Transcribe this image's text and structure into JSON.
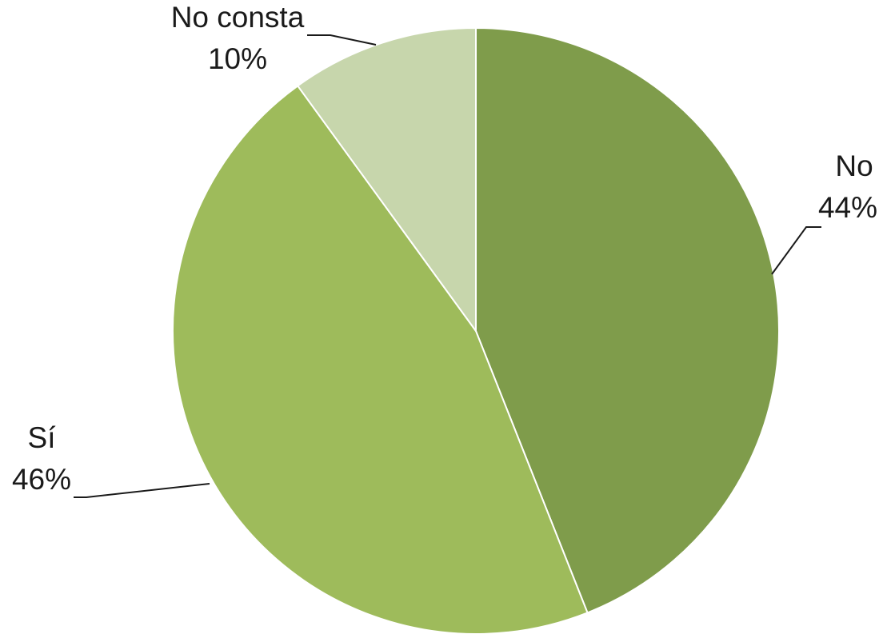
{
  "chart_data": {
    "type": "pie",
    "slices": [
      {
        "label": "No",
        "value": 44,
        "value_label": "44%",
        "color": "#7f9c4b"
      },
      {
        "label": "Sí",
        "value": 46,
        "value_label": "46%",
        "color": "#9ebb5b"
      },
      {
        "label": "No consta",
        "value": 10,
        "value_label": "10%",
        "color": "#c7d6ac"
      }
    ],
    "start_angle": "12 o'clock",
    "direction": "clockwise",
    "labels": "outside-with-leader-lines"
  }
}
